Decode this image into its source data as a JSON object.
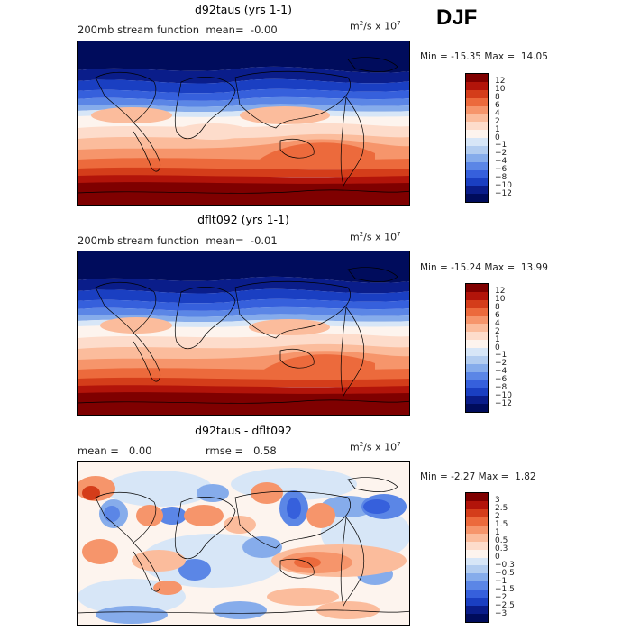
{
  "season": "DJF",
  "units_prefix": "m",
  "units_mid": "/s x 10",
  "units_exp1": "2",
  "units_exp2": "7",
  "panels": [
    {
      "title": "d92taus (yrs 1-1)",
      "subtitle": "200mb stream function",
      "mean_label": "mean=",
      "mean_value": "-0.00",
      "min_label": "Min =",
      "min_value": "-15.35",
      "max_label": "Max =",
      "max_value": "14.05",
      "colorbar_ticks": [
        "12",
        "10",
        "8",
        "6",
        "4",
        "2",
        "1",
        "0",
        "−1",
        "−2",
        "−4",
        "−6",
        "−8",
        "−10",
        "−12"
      ]
    },
    {
      "title": "dflt092 (yrs 1-1)",
      "subtitle": "200mb stream function",
      "mean_label": "mean=",
      "mean_value": "-0.01",
      "min_label": "Min =",
      "min_value": "-15.24",
      "max_label": "Max =",
      "max_value": "13.99",
      "colorbar_ticks": [
        "12",
        "10",
        "8",
        "6",
        "4",
        "2",
        "1",
        "0",
        "−1",
        "−2",
        "−4",
        "−6",
        "−8",
        "−10",
        "−12"
      ]
    },
    {
      "title": "d92taus - dflt092",
      "mean_label": "mean =",
      "mean_value": "0.00",
      "rmse_label": "rmse =",
      "rmse_value": "0.58",
      "min_label": "Min =",
      "min_value": "-2.27",
      "max_label": "Max =",
      "max_value": "1.82",
      "colorbar_ticks": [
        "3",
        "2.5",
        "2",
        "1.5",
        "1",
        "0.5",
        "0.3",
        "0",
        "−0.3",
        "−0.5",
        "−1",
        "−1.5",
        "−2",
        "−2.5",
        "−3"
      ]
    }
  ],
  "colors": {
    "diverging": [
      "#7f0000",
      "#b2140a",
      "#d43d1a",
      "#ec6a3c",
      "#f6956b",
      "#fbbc9c",
      "#fddccb",
      "#fdf4ee",
      "#d7e6f7",
      "#b3cdf0",
      "#86aceb",
      "#5b86e6",
      "#3660dc",
      "#1a3fc2",
      "#0a1d8a",
      "#000c5c"
    ]
  }
}
